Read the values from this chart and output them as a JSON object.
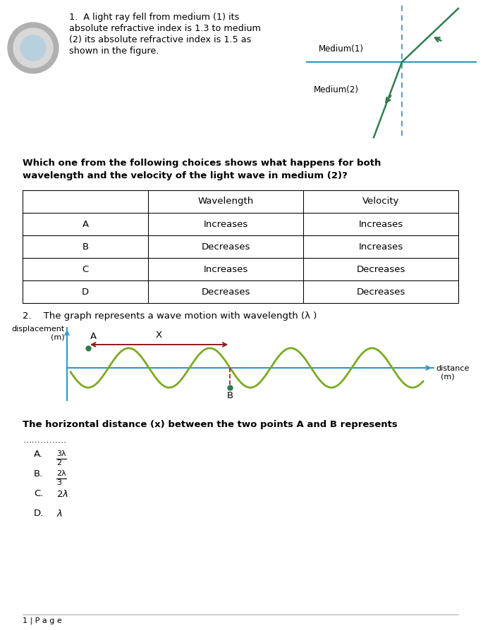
{
  "bg_color": "#ffffff",
  "page_width": 6.85,
  "page_height": 8.94,
  "circle_outer_color": "#b0b0b0",
  "circle_inner_color": "#d8d8d8",
  "circle_innermost_color": "#b8cfe0",
  "q1_text_line1": "1.  A light ray fell from medium (1) its",
  "q1_text_line2": "absolute refractive index is 1.3 to medium",
  "q1_text_line3": "(2) its absolute refractive index is 1.5 as",
  "q1_text_line4": "shown in the figure.",
  "medium1_label": "Medium(1)",
  "medium2_label": "Medium(2)",
  "ray_color": "#2e7d4f",
  "boundary_color": "#3399bb",
  "normal_color": "#5599bb",
  "question_bold": "Which one from the following choices shows what happens for both\nwavelength and the velocity of the light wave in medium (2)?",
  "table_headers": [
    "",
    "Wavelength",
    "Velocity"
  ],
  "table_rows": [
    [
      "A",
      "Increases",
      "Increases"
    ],
    [
      "B",
      "Decreases",
      "Increases"
    ],
    [
      "C",
      "Increases",
      "Decreases"
    ],
    [
      "D",
      "Decreases",
      "Decreases"
    ]
  ],
  "q2_text": "2.    The graph represents a wave motion with wavelength (λ )",
  "wave_color": "#7aaa20",
  "axis_color": "#3399cc",
  "arrow_color": "#8b1a1a",
  "point_color": "#2e7d4f",
  "dashed_color": "#8b1a1a",
  "wave_label_y": "displacement\n    (m)",
  "wave_label_x": "distance\n  (m)",
  "horizontal_dist_text": "The horizontal distance (x) between the two points A and B represents",
  "dots_text": "……………",
  "choices": [
    [
      "A.",
      "3λ",
      "2"
    ],
    [
      "B.",
      "2λ",
      "3"
    ],
    [
      "C.",
      "2λ",
      ""
    ],
    [
      "D.",
      "λ",
      ""
    ]
  ],
  "footer": "1 | P a g e",
  "table_line_color": "#000000",
  "text_color": "#000000"
}
